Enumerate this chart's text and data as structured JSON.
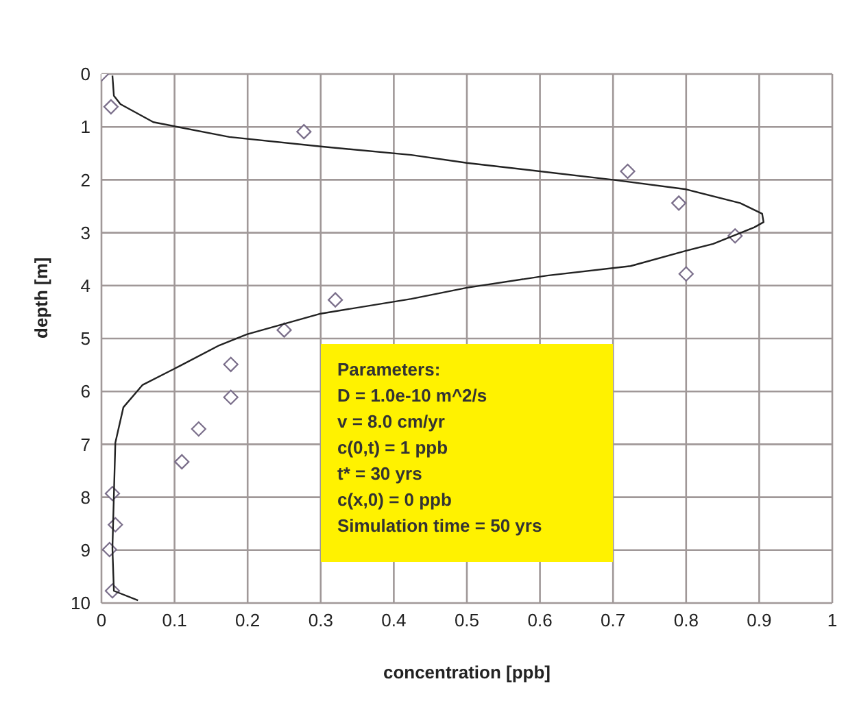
{
  "chart_data": {
    "type": "scatter",
    "xlabel": "concentration [ppb]",
    "ylabel": "depth [m]",
    "xlim": [
      0,
      1
    ],
    "xticks": [
      0,
      0.1,
      0.2,
      0.3,
      0.4,
      0.5,
      0.6,
      0.7,
      0.8,
      0.9,
      1
    ],
    "ylim": [
      10,
      0
    ],
    "yticks": [
      0,
      1,
      2,
      3,
      4,
      5,
      6,
      7,
      8,
      9,
      10
    ],
    "grid": true,
    "legend": false,
    "series": [
      {
        "marker": "diamond",
        "color": "#7a6e8a",
        "x": [
          0,
          0.013,
          0.277,
          0.72,
          0.79,
          0.867,
          0.8,
          0.32,
          0.25,
          0.177,
          0.177,
          0.133,
          0.11,
          0.015,
          0.019,
          0.011,
          0.015
        ],
        "values": [
          0,
          0.62,
          1.09,
          1.84,
          2.44,
          3.06,
          3.78,
          4.27,
          4.84,
          5.49,
          6.11,
          6.71,
          7.33,
          7.93,
          8.52,
          8.99,
          9.77
        ]
      },
      {
        "type": "line",
        "marker": "none",
        "color": "#222222",
        "x": [
          0.015,
          0.017,
          0.026,
          0.071,
          0.175,
          0.3,
          0.424,
          0.5,
          0.7,
          0.8,
          0.874,
          0.904,
          0.906,
          0.893,
          0.837,
          0.8,
          0.724,
          0.61,
          0.5,
          0.424,
          0.3,
          0.199,
          0.161,
          0.107,
          0.056,
          0.03,
          0.019,
          0.015,
          0.017,
          0.05
        ],
        "values": [
          0.03,
          0.41,
          0.57,
          0.91,
          1.19,
          1.37,
          1.53,
          1.68,
          2.0,
          2.18,
          2.44,
          2.64,
          2.8,
          2.9,
          3.21,
          3.34,
          3.63,
          3.81,
          4.04,
          4.25,
          4.53,
          4.92,
          5.13,
          5.52,
          5.88,
          6.3,
          6.97,
          8.96,
          9.77,
          9.95
        ]
      }
    ],
    "annotations": [
      "Parameters:",
      "D = 1.0e-10 m^2/s",
      "v = 8.0 cm/yr",
      "c(0,t) = 1 ppb",
      "t* = 30 yrs",
      "c(x,0) = 0 ppb",
      "Simulation time = 50 yrs"
    ]
  }
}
